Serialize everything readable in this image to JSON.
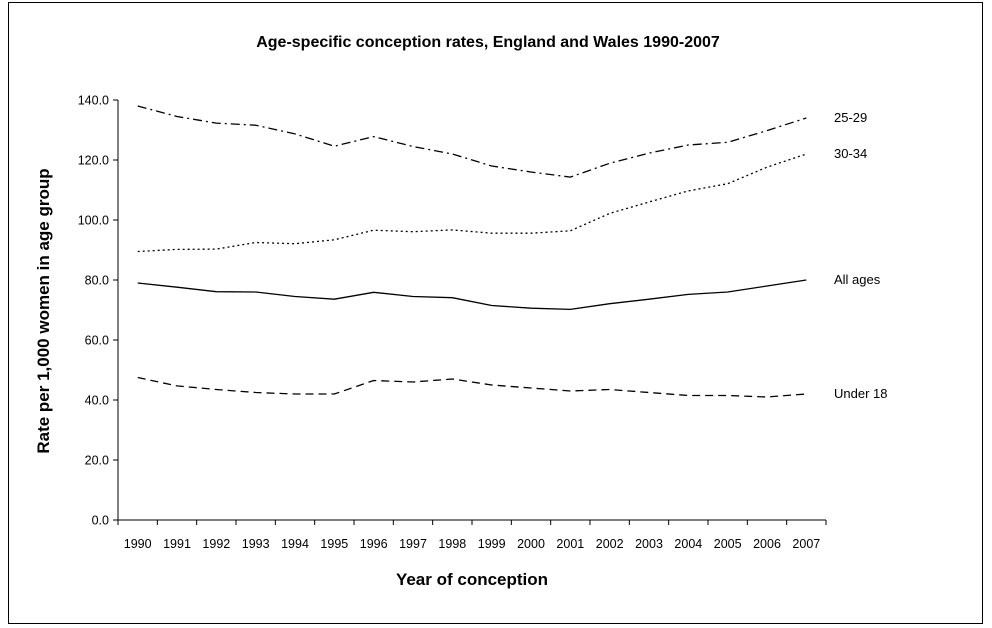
{
  "chart_data": {
    "type": "line",
    "title": "Age-specific conception rates, England and Wales 1990-2007",
    "xlabel": "Year of conception",
    "ylabel": "Rate per 1,000 women in age group",
    "ylim": [
      0,
      140
    ],
    "yticks": [
      "0.0",
      "20.0",
      "40.0",
      "60.0",
      "80.0",
      "100.0",
      "120.0",
      "140.0"
    ],
    "categories": [
      "1990",
      "1991",
      "1992",
      "1993",
      "1994",
      "1995",
      "1996",
      "1997",
      "1998",
      "1999",
      "2000",
      "2001",
      "2002",
      "2003",
      "2004",
      "2005",
      "2006",
      "2007"
    ],
    "series": [
      {
        "name": "25-29",
        "dash": "dashdot",
        "values": [
          138.0,
          134.5,
          132.3,
          131.6,
          128.7,
          124.6,
          127.8,
          124.5,
          122.0,
          118.0,
          116.0,
          114.3,
          118.9,
          122.3,
          125.0,
          125.9,
          129.8,
          134.0
        ]
      },
      {
        "name": "30-34",
        "dash": "dotted",
        "values": [
          89.5,
          90.2,
          90.3,
          92.5,
          92.1,
          93.4,
          96.6,
          96.1,
          96.7,
          95.6,
          95.6,
          96.4,
          102.2,
          106.0,
          109.7,
          112.1,
          117.6,
          122.0
        ]
      },
      {
        "name": "All ages",
        "dash": "solid",
        "values": [
          79.0,
          77.6,
          76.1,
          76.0,
          74.5,
          73.6,
          75.9,
          74.5,
          74.1,
          71.5,
          70.6,
          70.2,
          72.1,
          73.6,
          75.2,
          76.0,
          78.0,
          80.0
        ]
      },
      {
        "name": "Under 18",
        "dash": "dashed",
        "values": [
          47.5,
          44.7,
          43.5,
          42.5,
          42.0,
          42.0,
          46.5,
          46.0,
          47.0,
          45.0,
          44.0,
          43.0,
          43.5,
          42.5,
          41.5,
          41.5,
          41.0,
          42.0
        ]
      }
    ],
    "grid": false,
    "legend": "inline-right"
  }
}
